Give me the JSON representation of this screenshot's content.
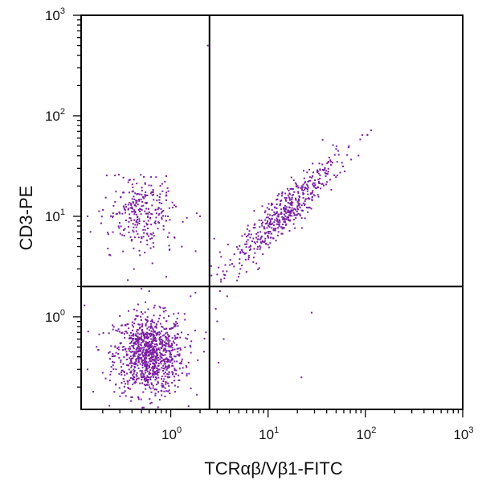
{
  "chart_data": {
    "type": "scatter",
    "xlabel": "TCRαβ/Vβ1-FITC",
    "ylabel": "CD3-PE",
    "x_scale": "log",
    "y_scale": "log",
    "xlim": [
      0.12,
      1000
    ],
    "ylim": [
      0.12,
      1000
    ],
    "x_ticks": [
      {
        "value": 1,
        "base": "10",
        "exp": "0"
      },
      {
        "value": 10,
        "base": "10",
        "exp": "1"
      },
      {
        "value": 100,
        "base": "10",
        "exp": "2"
      },
      {
        "value": 1000,
        "base": "10",
        "exp": "3"
      }
    ],
    "y_ticks": [
      {
        "value": 1,
        "base": "10",
        "exp": "0"
      },
      {
        "value": 10,
        "base": "10",
        "exp": "1"
      },
      {
        "value": 100,
        "base": "10",
        "exp": "2"
      },
      {
        "value": 1000,
        "base": "10",
        "exp": "3"
      }
    ],
    "quadrant_gates": {
      "x": 2.5,
      "y": 2.0
    },
    "point_color": "#7a1fa2",
    "populations": [
      {
        "center_x": 0.6,
        "center_y": 0.42,
        "count": 1000,
        "spread_x": 0.18,
        "spread_y": 0.2
      },
      {
        "center_x": 0.5,
        "center_y": 11,
        "count": 280,
        "spread_x": 0.17,
        "spread_y": 0.18
      },
      {
        "center_x": 15,
        "center_y": 11,
        "count": 520,
        "spread_x": 0.17,
        "spread_y": 0.17,
        "correlated": true
      }
    ],
    "sparse_points": [
      [
        2.4,
        500
      ],
      [
        28,
        1.1
      ],
      [
        22,
        0.25
      ],
      [
        3.8,
        1.6
      ],
      [
        3.0,
        0.9
      ],
      [
        3.5,
        0.6
      ],
      [
        4.5,
        4.2
      ],
      [
        5.2,
        3.0
      ],
      [
        3.2,
        4.4
      ],
      [
        2.8,
        6.0
      ],
      [
        2.0,
        10
      ],
      [
        0.14,
        10
      ],
      [
        0.15,
        7
      ],
      [
        0.16,
        0.18
      ],
      [
        0.14,
        0.3
      ],
      [
        1.3,
        5.0
      ],
      [
        2.6,
        3.2
      ],
      [
        2.9,
        1.2
      ],
      [
        3.6,
        2.6
      ],
      [
        4.8,
        2.3
      ],
      [
        6.0,
        2.8
      ],
      [
        0.55,
        1.4
      ],
      [
        0.6,
        1.8
      ],
      [
        1.6,
        1.6
      ],
      [
        2.2,
        0.45
      ],
      [
        2.3,
        0.7
      ],
      [
        3.1,
        0.35
      ],
      [
        0.13,
        1.3
      ],
      [
        1.8,
        4.5
      ],
      [
        0.9,
        2.5
      ]
    ]
  }
}
